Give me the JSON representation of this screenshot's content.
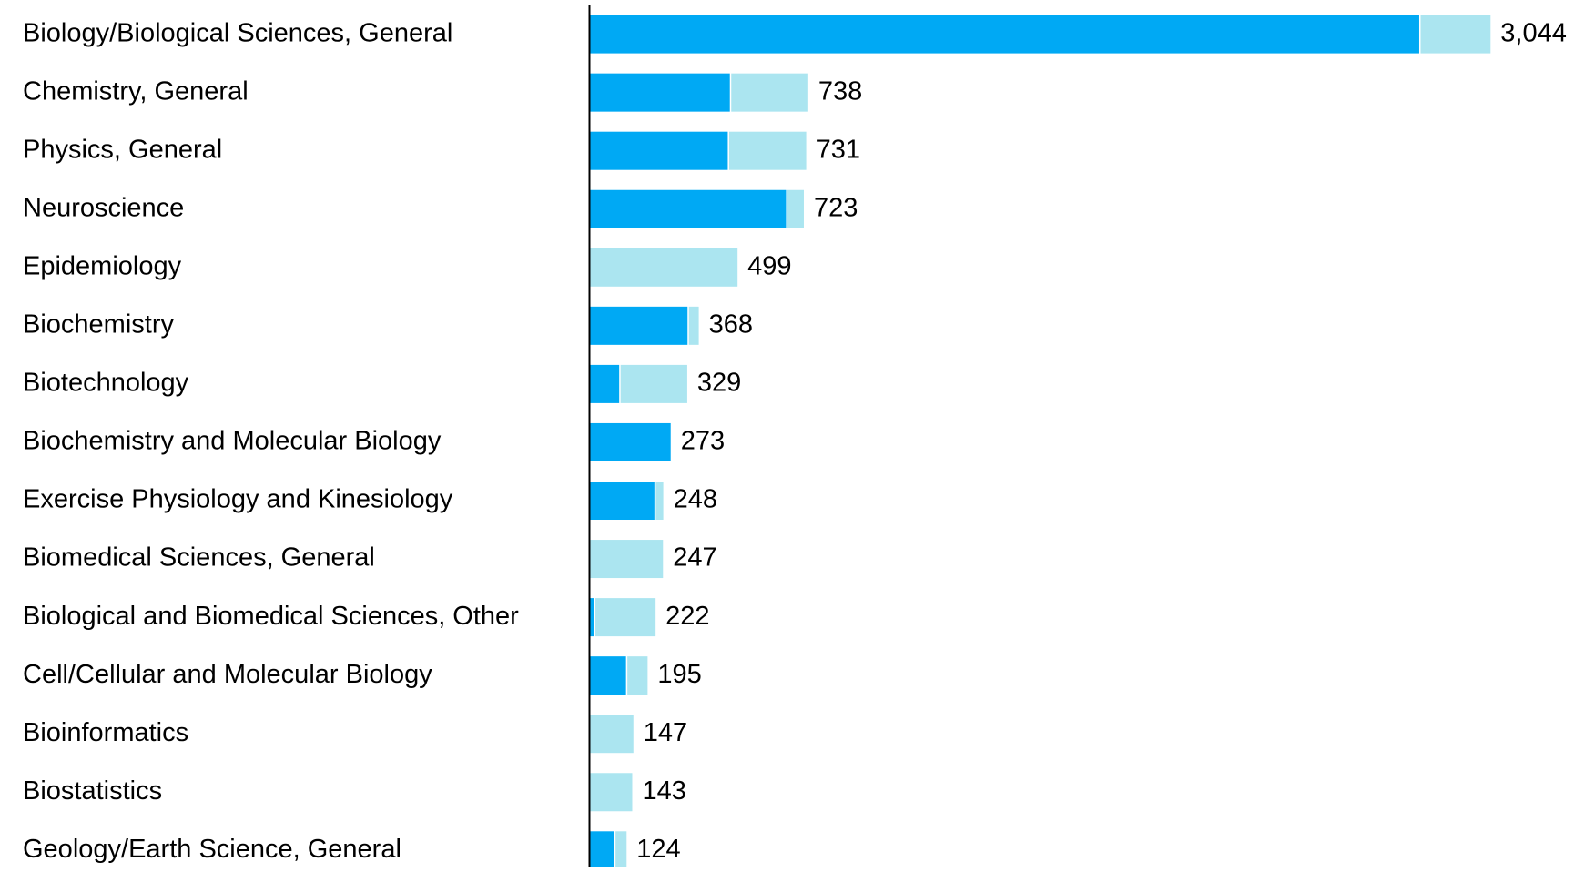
{
  "chart_data": {
    "type": "stacked-bar-horizontal",
    "categories": [
      "Biology/Biological Sciences, General",
      "Chemistry, General",
      "Physics, General",
      "Neuroscience",
      "Epidemiology",
      "Biochemistry",
      "Biotechnology",
      "Biochemistry and Molecular Biology",
      "Exercise Physiology and Kinesiology",
      "Biomedical Sciences, General",
      "Biological and Biomedical Sciences, Other",
      "Cell/Cellular and Molecular Biology",
      "Bioinformatics",
      "Biostatistics",
      "Geology/Earth Science, General"
    ],
    "series": [
      {
        "color": "#00a9f4",
        "values": [
          2803,
          473,
          466,
          663,
          0,
          330,
          99,
          273,
          218,
          0,
          14,
          122,
          0,
          0,
          82
        ]
      },
      {
        "color": "#abe5f0",
        "values": [
          241,
          265,
          265,
          60,
          499,
          38,
          230,
          0,
          30,
          247,
          208,
          73,
          147,
          143,
          42
        ]
      }
    ],
    "totals": [
      3044,
      738,
      731,
      723,
      499,
      368,
      329,
      273,
      248,
      247,
      222,
      195,
      147,
      143,
      124
    ],
    "total_labels": [
      "3,044",
      "738",
      "731",
      "723",
      "499",
      "368",
      "329",
      "273",
      "248",
      "247",
      "222",
      "195",
      "147",
      "143",
      "124"
    ],
    "xlim": [
      0,
      3200
    ]
  }
}
